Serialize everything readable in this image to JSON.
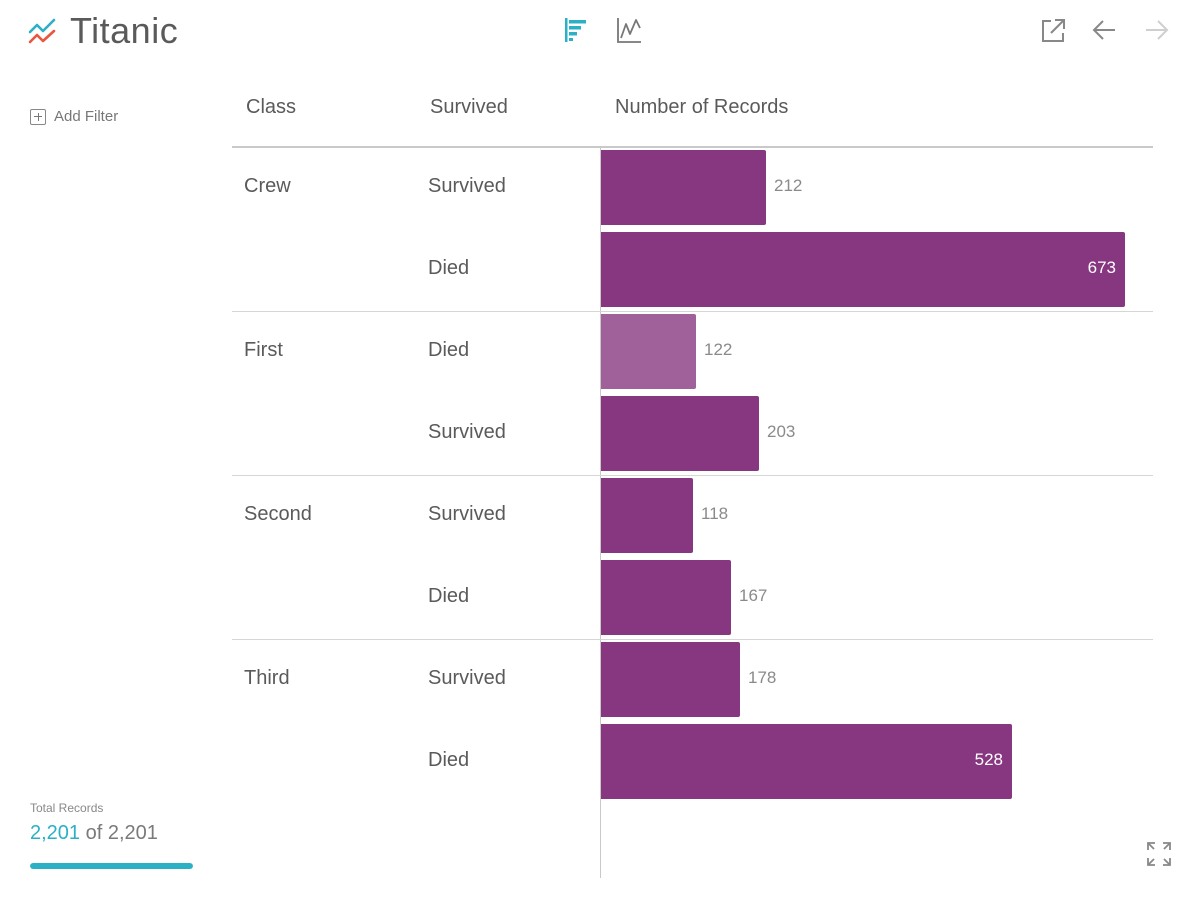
{
  "header": {
    "title": "Titanic",
    "logo_icon": "trend-line-logo-icon",
    "toolbar": {
      "bar_view_icon": "bar-chart-icon",
      "line_view_icon": "line-chart-icon",
      "export_icon": "external-link-icon",
      "back_icon": "arrow-left-icon",
      "forward_icon": "arrow-right-icon"
    }
  },
  "sidebar": {
    "add_filter_label": "Add Filter",
    "total_records_label": "Total Records",
    "total_records_current": "2,201",
    "total_records_suffix": "of 2,201",
    "total_records_fraction": 1.0
  },
  "colors": {
    "accent": "#2bb0c5",
    "bar": "#873680",
    "bar_highlight": "#a0609a",
    "logo_blue": "#2bb0c5",
    "logo_red": "#e8563f"
  },
  "chart_data": {
    "type": "bar",
    "orientation": "horizontal",
    "columns": [
      "Class",
      "Survived",
      "Number of Records"
    ],
    "xlim": [
      0,
      673
    ],
    "groups": [
      {
        "label": "Crew",
        "rows": [
          {
            "label": "Survived",
            "value": 212
          },
          {
            "label": "Died",
            "value": 673
          }
        ]
      },
      {
        "label": "First",
        "rows": [
          {
            "label": "Died",
            "value": 122,
            "highlighted": true
          },
          {
            "label": "Survived",
            "value": 203
          }
        ]
      },
      {
        "label": "Second",
        "rows": [
          {
            "label": "Survived",
            "value": 118
          },
          {
            "label": "Died",
            "value": 167
          }
        ]
      },
      {
        "label": "Third",
        "rows": [
          {
            "label": "Survived",
            "value": 178
          },
          {
            "label": "Died",
            "value": 528
          }
        ]
      }
    ]
  }
}
